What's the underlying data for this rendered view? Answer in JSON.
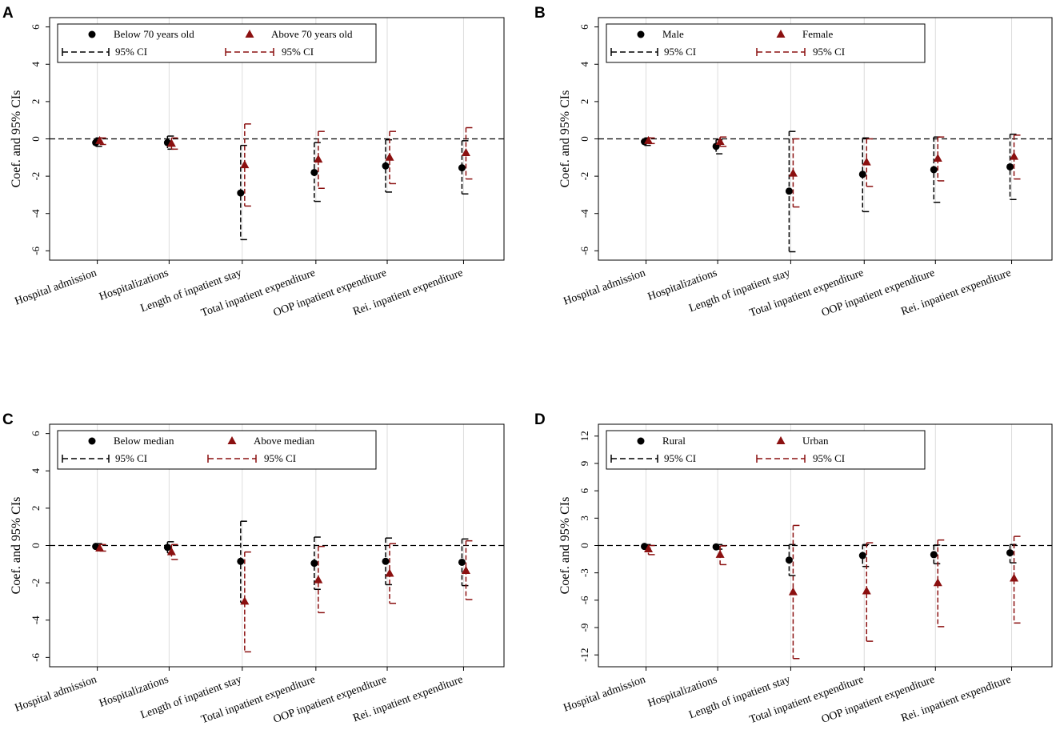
{
  "colors": {
    "group1": "#000000",
    "group2": "#8b1010",
    "grid": "#dcdcdc",
    "zero_line": "#000000"
  },
  "chart_data": [
    {
      "type": "scatter",
      "panel": "A",
      "ylabel": "Coef. and 95% CIs",
      "ylim": [
        -6.5,
        6.5
      ],
      "yticks": [
        -6,
        -4,
        -2,
        0,
        2,
        4,
        6
      ],
      "categories": [
        "Hospital admission",
        "Hospitalizations",
        "Length of inpatient stay",
        "Total inpatient expenditure",
        "OOP inpatient expenditure",
        "Rei. inpatient expenditure"
      ],
      "legend": {
        "placement": "top-left",
        "marker1": "Below 70 years old",
        "marker2": "Above 70 years old",
        "ci1": "95% CI",
        "ci2": "95% CI"
      },
      "series": [
        {
          "name": "Below 70 years old",
          "marker": "circle",
          "values": [
            -0.2,
            -0.2,
            -2.9,
            -1.8,
            -1.45,
            -1.55
          ],
          "ci_low": [
            -0.4,
            -0.55,
            -5.4,
            -3.35,
            -2.85,
            -2.95
          ],
          "ci_high": [
            0.05,
            0.15,
            -0.35,
            -0.2,
            -0.05,
            -0.1
          ]
        },
        {
          "name": "Above 70 years old",
          "marker": "triangle",
          "values": [
            -0.1,
            -0.25,
            -1.4,
            -1.1,
            -1.0,
            -0.75
          ],
          "ci_low": [
            -0.3,
            -0.55,
            -3.6,
            -2.65,
            -2.4,
            -2.15
          ],
          "ci_high": [
            0.05,
            0.05,
            0.8,
            0.4,
            0.4,
            0.6
          ]
        }
      ]
    },
    {
      "type": "scatter",
      "panel": "B",
      "ylabel": "Coef. and 95% CIs",
      "ylim": [
        -6.5,
        6.5
      ],
      "yticks": [
        -6,
        -4,
        -2,
        0,
        2,
        4,
        6
      ],
      "categories": [
        "Hospital admission",
        "Hospitalizations",
        "Length of inpatient stay",
        "Total inpatient expenditure",
        "OOP inpatient expenditure",
        "Rei. inpatient expenditure"
      ],
      "legend": {
        "placement": "top-left",
        "marker1": "Male",
        "marker2": "Female",
        "ci1": "95% CI",
        "ci2": "95% CI"
      },
      "series": [
        {
          "name": "Male",
          "marker": "circle",
          "values": [
            -0.15,
            -0.4,
            -2.8,
            -1.9,
            -1.65,
            -1.5
          ],
          "ci_low": [
            -0.35,
            -0.8,
            -6.05,
            -3.9,
            -3.4,
            -3.25
          ],
          "ci_high": [
            0.05,
            -0.05,
            0.4,
            0.05,
            0.1,
            0.25
          ]
        },
        {
          "name": "Female",
          "marker": "triangle",
          "values": [
            -0.1,
            -0.15,
            -1.85,
            -1.25,
            -1.05,
            -0.95
          ],
          "ci_low": [
            -0.25,
            -0.4,
            -3.65,
            -2.55,
            -2.25,
            -2.15
          ],
          "ci_high": [
            0.05,
            0.1,
            0.0,
            0.0,
            0.1,
            0.2
          ]
        }
      ]
    },
    {
      "type": "scatter",
      "panel": "C",
      "ylabel": "Coef. and 95% CIs",
      "ylim": [
        -6.5,
        6.5
      ],
      "yticks": [
        -6,
        -4,
        -2,
        0,
        2,
        4,
        6
      ],
      "categories": [
        "Hospital admission",
        "Hospitalizations",
        "Length of inpatient stay",
        "Total inpatient expenditure",
        "OOP inpatient expenditure",
        "Rei. inpatient expenditure"
      ],
      "legend": {
        "placement": "top-left",
        "marker1": "Below median",
        "marker2": "Above median",
        "ci1": "95% CI",
        "ci2": "95% CI"
      },
      "series": [
        {
          "name": "Below median",
          "marker": "circle",
          "values": [
            -0.05,
            -0.1,
            -0.85,
            -0.95,
            -0.85,
            -0.9
          ],
          "ci_low": [
            -0.2,
            -0.4,
            -3.05,
            -2.35,
            -2.1,
            -2.15
          ],
          "ci_high": [
            0.1,
            0.2,
            1.3,
            0.45,
            0.4,
            0.35
          ]
        },
        {
          "name": "Above median",
          "marker": "triangle",
          "values": [
            -0.15,
            -0.35,
            -3.0,
            -1.85,
            -1.5,
            -1.35
          ],
          "ci_low": [
            -0.3,
            -0.75,
            -5.7,
            -3.6,
            -3.1,
            -2.9
          ],
          "ci_high": [
            0.05,
            0.05,
            -0.35,
            -0.05,
            0.1,
            0.25
          ]
        }
      ]
    },
    {
      "type": "scatter",
      "panel": "D",
      "ylabel": "Coef. and 95% CIs",
      "ylim": [
        -13.3,
        13.3
      ],
      "yticks": [
        -12,
        -9,
        -6,
        -3,
        0,
        3,
        6,
        9,
        12
      ],
      "categories": [
        "Hospital admission",
        "Hospitalizations",
        "Length of inpatient stay",
        "Total inpatient expenditure",
        "OOP inpatient expenditure",
        "Rei. inpatient expenditure"
      ],
      "legend": {
        "placement": "top-left",
        "marker1": "Rural",
        "marker2": "Urban",
        "ci1": "95% CI",
        "ci2": "95% CI"
      },
      "series": [
        {
          "name": "Rural",
          "marker": "circle",
          "values": [
            -0.1,
            -0.15,
            -1.6,
            -1.1,
            -1.0,
            -0.8
          ],
          "ci_low": [
            -0.3,
            -0.4,
            -3.3,
            -2.3,
            -2.0,
            -1.9
          ],
          "ci_high": [
            0.1,
            0.1,
            0.1,
            0.1,
            0.05,
            0.1
          ]
        },
        {
          "name": "Urban",
          "marker": "triangle",
          "values": [
            -0.4,
            -1.0,
            -5.1,
            -5.0,
            -4.1,
            -3.6
          ],
          "ci_low": [
            -1.0,
            -2.1,
            -12.4,
            -10.5,
            -8.9,
            -8.5
          ],
          "ci_high": [
            0.0,
            -0.05,
            2.2,
            0.3,
            0.6,
            1.0
          ]
        }
      ]
    }
  ]
}
